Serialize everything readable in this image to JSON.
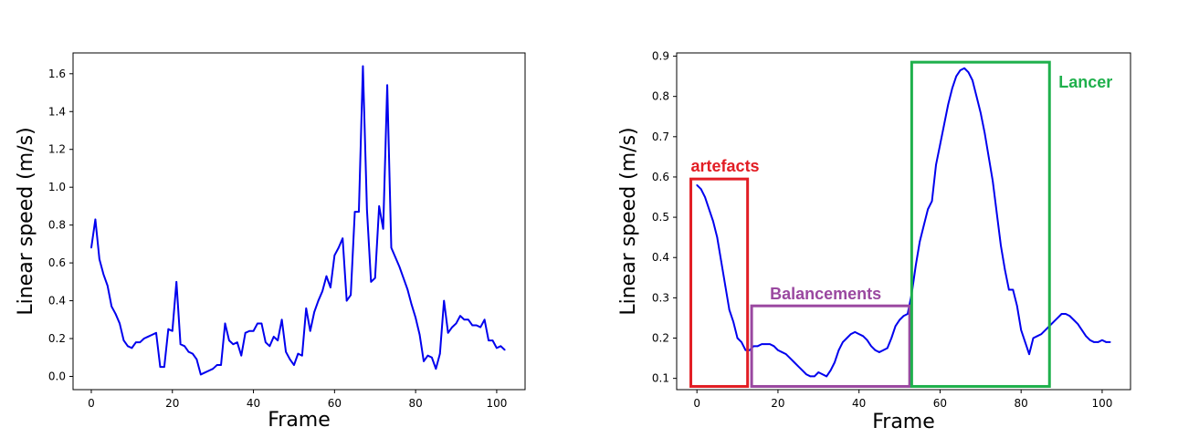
{
  "chart_data": [
    {
      "type": "line",
      "xlabel": "Frame",
      "ylabel": "Linear speed (m/s)",
      "xlim": [
        -4.5,
        107
      ],
      "ylim": [
        -0.07,
        1.71
      ],
      "xticks": [
        0,
        20,
        40,
        60,
        80,
        100
      ],
      "yticks": [
        0.0,
        0.2,
        0.4,
        0.6,
        0.8,
        1.0,
        1.2,
        1.4,
        1.6
      ],
      "ytick_labels": [
        "0.0",
        "0.2",
        "0.4",
        "0.6",
        "0.8",
        "1.0",
        "1.2",
        "1.4",
        "1.6"
      ],
      "grid": false,
      "series": [
        {
          "color": "#0000ee",
          "x": [
            0,
            1,
            2,
            3,
            4,
            5,
            6,
            7,
            8,
            9,
            10,
            11,
            12,
            13,
            14,
            15,
            16,
            17,
            18,
            19,
            20,
            21,
            22,
            23,
            24,
            25,
            26,
            27,
            28,
            29,
            30,
            31,
            32,
            33,
            34,
            35,
            36,
            37,
            38,
            39,
            40,
            41,
            42,
            43,
            44,
            45,
            46,
            47,
            48,
            49,
            50,
            51,
            52,
            53,
            54,
            55,
            56,
            57,
            58,
            59,
            60,
            61,
            62,
            63,
            64,
            65,
            66,
            67,
            68,
            69,
            70,
            71,
            72,
            73,
            74,
            75,
            76,
            77,
            78,
            79,
            80,
            81,
            82,
            83,
            84,
            85,
            86,
            87,
            88,
            89,
            90,
            91,
            92,
            93,
            94,
            95,
            96,
            97,
            98,
            99,
            100,
            101,
            102
          ],
          "y": [
            0.68,
            0.83,
            0.62,
            0.54,
            0.48,
            0.37,
            0.33,
            0.28,
            0.19,
            0.16,
            0.15,
            0.18,
            0.18,
            0.2,
            0.21,
            0.22,
            0.23,
            0.05,
            0.05,
            0.25,
            0.24,
            0.5,
            0.17,
            0.16,
            0.13,
            0.12,
            0.09,
            0.01,
            0.02,
            0.03,
            0.04,
            0.06,
            0.06,
            0.28,
            0.19,
            0.17,
            0.18,
            0.11,
            0.23,
            0.24,
            0.24,
            0.28,
            0.28,
            0.18,
            0.16,
            0.21,
            0.19,
            0.3,
            0.13,
            0.09,
            0.06,
            0.12,
            0.11,
            0.36,
            0.24,
            0.34,
            0.4,
            0.45,
            0.53,
            0.47,
            0.64,
            0.68,
            0.73,
            0.4,
            0.43,
            0.87,
            0.87,
            1.64,
            0.88,
            0.5,
            0.52,
            0.9,
            0.78,
            1.54,
            0.68,
            0.63,
            0.58,
            0.52,
            0.46,
            0.38,
            0.31,
            0.22,
            0.08,
            0.11,
            0.1,
            0.04,
            0.12,
            0.4,
            0.23,
            0.26,
            0.28,
            0.32,
            0.3,
            0.3,
            0.27,
            0.27,
            0.26,
            0.3,
            0.19,
            0.19,
            0.15,
            0.16,
            0.14
          ]
        }
      ]
    },
    {
      "type": "line",
      "xlabel": "Frame",
      "ylabel": "Linear speed (m/s)",
      "xlim": [
        -5,
        107
      ],
      "ylim": [
        0.072,
        0.908
      ],
      "xticks": [
        0,
        20,
        40,
        60,
        80,
        100
      ],
      "yticks": [
        0.1,
        0.2,
        0.3,
        0.4,
        0.5,
        0.6,
        0.7,
        0.8,
        0.9
      ],
      "ytick_labels": [
        "0.1",
        "0.2",
        "0.3",
        "0.4",
        "0.5",
        "0.6",
        "0.7",
        "0.8",
        "0.9"
      ],
      "grid": false,
      "series": [
        {
          "color": "#0000ee",
          "x": [
            0,
            1,
            2,
            3,
            4,
            5,
            6,
            7,
            8,
            9,
            10,
            11,
            12,
            13,
            14,
            15,
            16,
            17,
            18,
            19,
            20,
            21,
            22,
            23,
            24,
            25,
            26,
            27,
            28,
            29,
            30,
            31,
            32,
            33,
            34,
            35,
            36,
            37,
            38,
            39,
            40,
            41,
            42,
            43,
            44,
            45,
            46,
            47,
            48,
            49,
            50,
            51,
            52,
            53,
            54,
            55,
            56,
            57,
            58,
            59,
            60,
            61,
            62,
            63,
            64,
            65,
            66,
            67,
            68,
            69,
            70,
            71,
            72,
            73,
            74,
            75,
            76,
            77,
            78,
            79,
            80,
            81,
            82,
            83,
            84,
            85,
            86,
            87,
            88,
            89,
            90,
            91,
            92,
            93,
            94,
            95,
            96,
            97,
            98,
            99,
            100,
            101,
            102
          ],
          "y": [
            0.58,
            0.57,
            0.55,
            0.52,
            0.49,
            0.45,
            0.39,
            0.33,
            0.27,
            0.24,
            0.2,
            0.19,
            0.17,
            0.17,
            0.18,
            0.18,
            0.185,
            0.185,
            0.185,
            0.18,
            0.17,
            0.165,
            0.16,
            0.15,
            0.14,
            0.13,
            0.12,
            0.11,
            0.105,
            0.105,
            0.115,
            0.11,
            0.105,
            0.12,
            0.14,
            0.17,
            0.19,
            0.2,
            0.21,
            0.215,
            0.21,
            0.205,
            0.195,
            0.18,
            0.17,
            0.165,
            0.17,
            0.175,
            0.2,
            0.23,
            0.245,
            0.255,
            0.26,
            0.31,
            0.38,
            0.44,
            0.48,
            0.52,
            0.54,
            0.63,
            0.68,
            0.73,
            0.78,
            0.82,
            0.85,
            0.865,
            0.87,
            0.86,
            0.84,
            0.8,
            0.76,
            0.71,
            0.65,
            0.59,
            0.51,
            0.43,
            0.37,
            0.32,
            0.32,
            0.28,
            0.22,
            0.19,
            0.16,
            0.2,
            0.205,
            0.21,
            0.22,
            0.23,
            0.24,
            0.25,
            0.26,
            0.26,
            0.255,
            0.245,
            0.235,
            0.22,
            0.205,
            0.195,
            0.19,
            0.19,
            0.195,
            0.19,
            0.19
          ]
        }
      ],
      "annotations": [
        {
          "label": "artefacts",
          "color": "#e21d24",
          "x_range": [
            -1.5,
            12.5
          ],
          "y_range": [
            0.08,
            0.595
          ]
        },
        {
          "label": "Balancements",
          "color": "#9a48a0",
          "x_range": [
            13.5,
            52.5
          ],
          "y_range": [
            0.08,
            0.28
          ]
        },
        {
          "label": "Lancer",
          "color": "#1fb04c",
          "x_range": [
            53,
            87
          ],
          "y_range": [
            0.08,
            0.885
          ]
        }
      ]
    }
  ]
}
